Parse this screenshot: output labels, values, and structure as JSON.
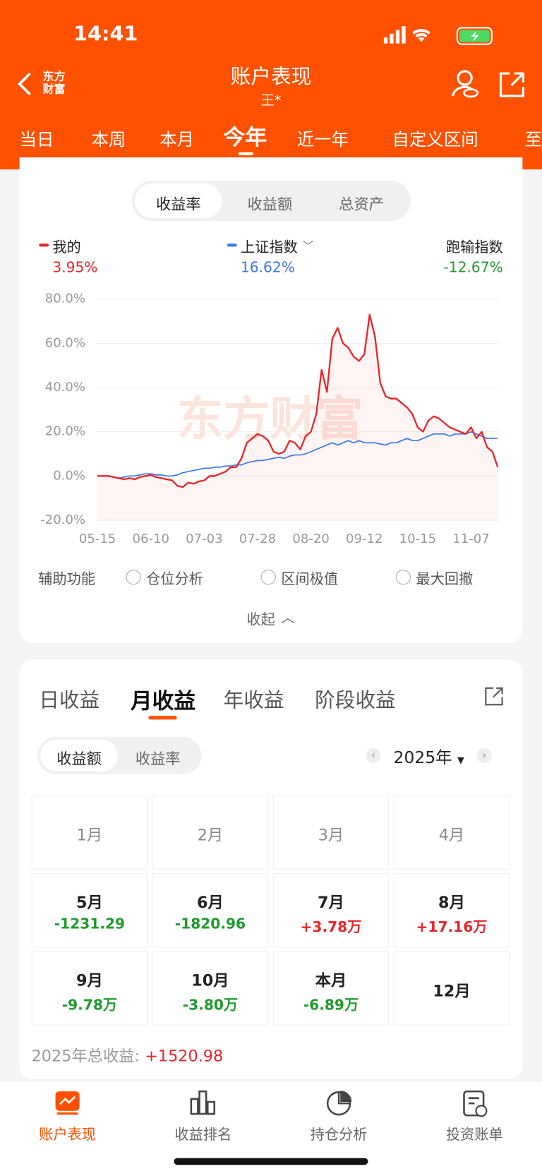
{
  "status_bar": {
    "time": "14:41"
  },
  "header": {
    "brand": "东方财富",
    "title": "账户表现",
    "subtitle": "王*"
  },
  "period_tabs": {
    "items": [
      "当日",
      "本周",
      "本月",
      "今年",
      "近一年",
      "自定义区间",
      "至"
    ],
    "active": 3
  },
  "metric_toggle": {
    "items": [
      "收益率",
      "收益额",
      "总资产"
    ],
    "active": 0
  },
  "chart_data": {
    "type": "line",
    "watermark": "东方财富",
    "series": [
      {
        "name": "我的",
        "color": "#e8262a",
        "total": "3.95%",
        "values": [
          0,
          0,
          0,
          -0.5,
          -1,
          -1.5,
          -1,
          -1.5,
          -0.5,
          0,
          0.5,
          -0.5,
          -1,
          -1.5,
          -2,
          -4.5,
          -5,
          -3,
          -3.5,
          -2.5,
          -2,
          0,
          0,
          1,
          2,
          4,
          4,
          8,
          15,
          17,
          19,
          18,
          16,
          11,
          10,
          11,
          16,
          15,
          12,
          18,
          20,
          28,
          48,
          38,
          62,
          67,
          60,
          58,
          54,
          52,
          55,
          73,
          63,
          42,
          36,
          35,
          35,
          33,
          31,
          28,
          22,
          20,
          25,
          27,
          26,
          24,
          22,
          21,
          20,
          19,
          22,
          17,
          20,
          13,
          11,
          4
        ]
      },
      {
        "name": "上证指数",
        "color": "#3b78e7",
        "total": "16.62%",
        "values": [
          0,
          0,
          0,
          -0.5,
          -1,
          -0.5,
          0,
          0,
          0.5,
          1,
          1,
          0.5,
          0.5,
          0,
          0,
          0.5,
          1.5,
          2,
          2.5,
          3,
          3.5,
          3.5,
          4,
          4,
          4.5,
          4.5,
          5,
          5,
          6,
          6.5,
          7,
          7,
          7.5,
          8,
          8.5,
          8,
          9,
          9.5,
          9.5,
          10,
          11,
          12,
          13,
          14,
          15,
          14,
          15,
          16,
          15,
          16,
          15,
          15,
          15,
          14.5,
          14,
          15,
          15,
          16,
          17,
          16,
          16,
          17,
          18,
          19,
          19,
          19,
          18,
          19,
          19,
          19,
          20,
          19,
          18,
          17,
          17,
          17
        ]
      }
    ],
    "comparison": {
      "label": "跑输指数",
      "value": "-12.67%"
    },
    "categories": [
      "05-15",
      null,
      null,
      null,
      null,
      null,
      null,
      null,
      null,
      null,
      "06-10",
      null,
      null,
      null,
      null,
      null,
      null,
      null,
      null,
      null,
      "07-03",
      null,
      null,
      null,
      null,
      null,
      null,
      null,
      null,
      null,
      "07-28",
      null,
      null,
      null,
      null,
      null,
      null,
      null,
      null,
      null,
      "08-20",
      null,
      null,
      null,
      null,
      null,
      null,
      null,
      null,
      null,
      "09-12",
      null,
      null,
      null,
      null,
      null,
      null,
      null,
      null,
      null,
      "10-15",
      null,
      null,
      null,
      null,
      null,
      null,
      null,
      null,
      null,
      "11-07",
      null,
      null,
      null,
      null,
      null
    ],
    "ylim": [
      -20,
      80
    ],
    "yticks": [
      {
        "value": 80,
        "label": "80.0%"
      },
      {
        "value": 60,
        "label": "60.0%"
      },
      {
        "value": 40,
        "label": "40.0%"
      },
      {
        "value": 20,
        "label": "20.0%"
      },
      {
        "value": 0,
        "label": "0.0%"
      },
      {
        "value": -20,
        "label": "-20.0%"
      }
    ],
    "grid": true
  },
  "tools": {
    "label": "辅助功能",
    "options": [
      "仓位分析",
      "区间极值",
      "最大回撤"
    ],
    "collapse": "收起"
  },
  "profit_tabs": {
    "items": [
      "日收益",
      "月收益",
      "年收益",
      "阶段收益"
    ],
    "active": 1
  },
  "profit_toggle": {
    "items": [
      "收益额",
      "收益率"
    ],
    "active": 0
  },
  "year": "2025年",
  "months": [
    {
      "month": "1月"
    },
    {
      "month": "2月"
    },
    {
      "month": "3月"
    },
    {
      "month": "4月"
    },
    {
      "month": "5月",
      "value": "-1231.29"
    },
    {
      "month": "6月",
      "value": "-1820.96"
    },
    {
      "month": "7月",
      "value": "+3.78万"
    },
    {
      "month": "8月",
      "value": "+17.16万"
    },
    {
      "month": "9月",
      "value": "-9.78万"
    },
    {
      "month": "10月",
      "value": "-3.80万"
    },
    {
      "month": "本月",
      "value": "-6.89万"
    },
    {
      "month": "12月"
    }
  ],
  "total": {
    "label": "2025年总收益:",
    "value": "+1520.98"
  },
  "bottom_nav": {
    "items": [
      "账户表现",
      "收益排名",
      "持仓分析",
      "投资账单"
    ],
    "active": 0
  }
}
